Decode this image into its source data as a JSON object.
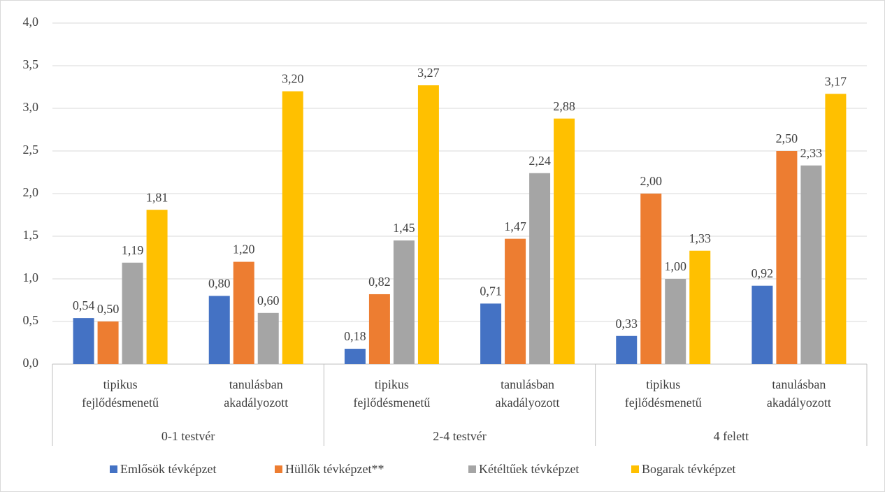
{
  "chart_data": {
    "type": "bar",
    "categories": [
      [
        "tipikus",
        "fejlődésmenetű"
      ],
      [
        "tanulásban",
        "akadályozott"
      ],
      [
        "tipikus",
        "fejlődésmenetű"
      ],
      [
        "tanulásban",
        "akadályozott"
      ],
      [
        "tipikus",
        "fejlődésmenetű"
      ],
      [
        "tanulásban",
        "akadályozott"
      ]
    ],
    "groups": [
      "0-1 testvér",
      "2-4 testvér",
      "4 felett"
    ],
    "series": [
      {
        "name": "Emlősök tévképzet",
        "color": "#4472c4",
        "values": [
          0.54,
          0.8,
          0.18,
          0.71,
          0.33,
          0.92
        ],
        "value_labels": [
          "0,54",
          "0,80",
          "0,18",
          "0,71",
          "0,33",
          "0,92"
        ]
      },
      {
        "name": "Hüllők tévképzet**",
        "color": "#ed7d31",
        "values": [
          0.5,
          1.2,
          0.82,
          1.47,
          2.0,
          2.5
        ],
        "value_labels": [
          "0,50",
          "1,20",
          "0,82",
          "1,47",
          "2,00",
          "2,50"
        ]
      },
      {
        "name": "Kétéltűek tévképzet",
        "color": "#a5a5a5",
        "values": [
          1.19,
          0.6,
          1.45,
          2.24,
          1.0,
          2.33
        ],
        "value_labels": [
          "1,19",
          "0,60",
          "1,45",
          "2,24",
          "1,00",
          "2,33"
        ]
      },
      {
        "name": "Bogarak tévképzet",
        "color": "#ffc000",
        "values": [
          1.81,
          3.2,
          3.27,
          2.88,
          1.33,
          3.17
        ],
        "value_labels": [
          "1,81",
          "3,20",
          "3,27",
          "2,88",
          "1,33",
          "3,17"
        ]
      }
    ],
    "ylim": [
      0,
      4
    ],
    "yticks": [
      {
        "value": 0,
        "label": "0,0"
      },
      {
        "value": 0.5,
        "label": "0,5"
      },
      {
        "value": 1,
        "label": "1,0"
      },
      {
        "value": 1.5,
        "label": "1,5"
      },
      {
        "value": 2,
        "label": "2,0"
      },
      {
        "value": 2.5,
        "label": "2,5"
      },
      {
        "value": 3,
        "label": "3,0"
      },
      {
        "value": 3.5,
        "label": "3,5"
      },
      {
        "value": 4,
        "label": "4,0"
      }
    ],
    "grid": true,
    "legend": "bottom"
  }
}
